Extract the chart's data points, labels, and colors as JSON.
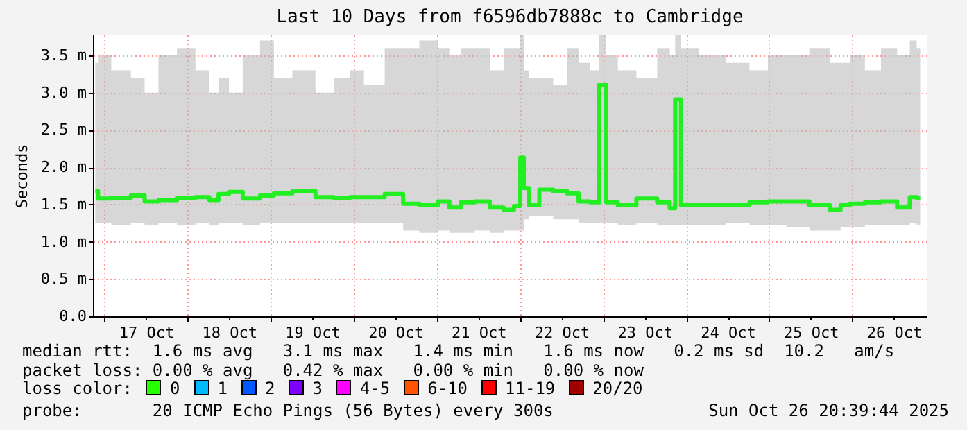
{
  "chart_data": {
    "type": "step",
    "title": "Last 10 Days from f6596db7888c to Cambridge",
    "ylabel": "Seconds",
    "x": [
      "2025-10-16T21:20",
      "2025-10-16T22:56",
      "2025-10-17T05:00",
      "2025-10-17T10:16",
      "2025-10-17T12:56",
      "2025-10-17T18:16",
      "2025-10-17T23:36",
      "2025-10-18T04:56",
      "2025-10-18T07:36",
      "2025-10-18T10:16",
      "2025-10-18T13:36",
      "2025-10-18T18:16",
      "2025-10-18T23:36",
      "2025-10-19T02:16",
      "2025-10-19T10:16",
      "2025-10-19T15:36",
      "2025-10-19T20:56",
      "2025-10-20T00:56",
      "2025-10-20T04:56",
      "2025-10-20T12:56",
      "2025-10-20T15:36",
      "2025-10-20T22:16",
      "2025-10-21T02:16",
      "2025-10-21T04:56",
      "2025-10-21T08:56",
      "2025-10-21T12:56",
      "2025-10-21T17:36",
      "2025-10-21T20:56",
      "2025-10-21T23:36",
      "2025-10-22T00:36",
      "2025-10-22T01:36",
      "2025-10-22T03:36",
      "2025-10-22T07:36",
      "2025-10-22T11:36",
      "2025-10-22T15:36",
      "2025-10-22T18:16",
      "2025-10-22T22:16",
      "2025-10-22T23:36",
      "2025-10-23T02:16",
      "2025-10-23T06:16",
      "2025-10-23T13:00",
      "2025-10-23T18:16",
      "2025-10-23T20:16",
      "2025-10-23T21:24",
      "2025-10-23T23:36",
      "2025-10-24T07:36",
      "2025-10-24T15:36",
      "2025-10-24T21:00",
      "2025-10-25T02:16",
      "2025-10-25T07:36",
      "2025-10-25T15:36",
      "2025-10-25T19:36",
      "2025-10-25T21:36",
      "2025-10-26T01:00",
      "2025-10-26T06:16",
      "2025-10-26T10:16",
      "2025-10-26T15:36",
      "2025-10-26T17:36",
      "2025-10-26T19:36"
    ],
    "series": [
      {
        "color": "#22ee22",
        "values": [
          1.68,
          1.58,
          1.59,
          1.62,
          1.54,
          1.56,
          1.59,
          1.6,
          1.56,
          1.64,
          1.67,
          1.58,
          1.62,
          1.65,
          1.68,
          1.6,
          1.59,
          1.6,
          1.6,
          1.64,
          1.51,
          1.49,
          1.54,
          1.46,
          1.53,
          1.54,
          1.46,
          1.43,
          1.48,
          2.13,
          1.72,
          1.49,
          1.7,
          1.68,
          1.65,
          1.54,
          1.53,
          3.11,
          1.53,
          1.49,
          1.58,
          1.53,
          1.45,
          2.91,
          1.49,
          1.49,
          1.49,
          1.53,
          1.54,
          1.54,
          1.49,
          1.43,
          1.49,
          1.51,
          1.53,
          1.54,
          1.46,
          1.6,
          1.59
        ],
        "lower": [
          1.25,
          1.25,
          1.22,
          1.25,
          1.22,
          1.25,
          1.22,
          1.25,
          1.22,
          1.25,
          1.25,
          1.22,
          1.25,
          1.25,
          1.25,
          1.25,
          1.25,
          1.25,
          1.25,
          1.25,
          1.15,
          1.12,
          1.15,
          1.12,
          1.12,
          1.15,
          1.12,
          1.15,
          1.15,
          1.15,
          1.3,
          1.35,
          1.35,
          1.3,
          1.3,
          1.25,
          1.25,
          1.25,
          1.25,
          1.22,
          1.25,
          1.22,
          1.22,
          1.22,
          1.22,
          1.22,
          1.25,
          1.22,
          1.22,
          1.2,
          1.15,
          1.15,
          1.2,
          1.2,
          1.22,
          1.22,
          1.22,
          1.25,
          1.22
        ],
        "upper": [
          3.4,
          3.5,
          3.3,
          3.2,
          3.0,
          3.5,
          3.6,
          3.3,
          3.0,
          3.2,
          3.0,
          3.5,
          3.7,
          3.2,
          3.3,
          3.0,
          3.2,
          3.3,
          3.1,
          3.6,
          3.6,
          3.7,
          3.6,
          3.5,
          3.6,
          3.6,
          3.3,
          3.6,
          3.6,
          3.78,
          3.3,
          3.2,
          3.2,
          3.1,
          3.6,
          3.4,
          3.3,
          3.78,
          3.5,
          3.3,
          3.2,
          3.6,
          3.5,
          3.78,
          3.6,
          3.5,
          3.4,
          3.3,
          3.5,
          3.5,
          3.6,
          3.4,
          3.4,
          3.5,
          3.3,
          3.6,
          3.5,
          3.7,
          3.6
        ]
      }
    ],
    "xlim": [
      "2025-10-16T20:40",
      "2025-10-26T21:30"
    ],
    "xticks": [
      {
        "value": "2025-10-17T00:00",
        "label": null
      },
      {
        "value": "2025-10-18T00:00",
        "label": null
      },
      {
        "value": "2025-10-19T00:00",
        "label": null
      },
      {
        "value": "2025-10-20T00:00",
        "label": null
      },
      {
        "value": "2025-10-21T00:00",
        "label": null
      },
      {
        "value": "2025-10-22T00:00",
        "label": null
      },
      {
        "value": "2025-10-23T00:00",
        "label": null
      },
      {
        "value": "2025-10-24T00:00",
        "label": null
      },
      {
        "value": "2025-10-25T00:00",
        "label": null
      },
      {
        "value": "2025-10-26T00:00",
        "label": null
      },
      {
        "value": "2025-10-17T12:00",
        "label": "17 Oct"
      },
      {
        "value": "2025-10-18T12:00",
        "label": "18 Oct"
      },
      {
        "value": "2025-10-19T12:00",
        "label": "19 Oct"
      },
      {
        "value": "2025-10-20T12:00",
        "label": "20 Oct"
      },
      {
        "value": "2025-10-21T12:00",
        "label": "21 Oct"
      },
      {
        "value": "2025-10-22T12:00",
        "label": "22 Oct"
      },
      {
        "value": "2025-10-23T12:00",
        "label": "23 Oct"
      },
      {
        "value": "2025-10-24T12:00",
        "label": "24 Oct"
      },
      {
        "value": "2025-10-25T12:00",
        "label": "25 Oct"
      },
      {
        "value": "2025-10-26T12:00",
        "label": "26 Oct"
      }
    ],
    "ylim": [
      0,
      3.78
    ],
    "yticks": [
      {
        "value": 0,
        "label": "0.0"
      },
      {
        "value": 0.5,
        "label": "0.5 m"
      },
      {
        "value": 1,
        "label": "1.0 m"
      },
      {
        "value": 1.5,
        "label": "1.5 m"
      },
      {
        "value": 2,
        "label": "2.0 m"
      },
      {
        "value": 2.5,
        "label": "2.5 m"
      },
      {
        "value": 3,
        "label": "3.0 m"
      },
      {
        "value": 3.5,
        "label": "3.5 m"
      }
    ],
    "grid": true,
    "marker": "none",
    "line_style": "solid",
    "annotations": [
      "median rtt:  1.6 ms avg   3.1 ms max   1.4 ms min   1.6 ms now   0.2 ms sd  10.2   am/s",
      "packet loss: 0.00 % avg   0.42 % max   0.00 % min   0.00 % now",
      "loss color:",
      "0",
      "1",
      "2",
      "3",
      "4-5",
      "6-10",
      "11-19",
      "20/20",
      "probe:       20 ICMP Echo Pings (56 Bytes) every 300s",
      "Sun Oct 26 20:39:44 2025"
    ]
  }
}
